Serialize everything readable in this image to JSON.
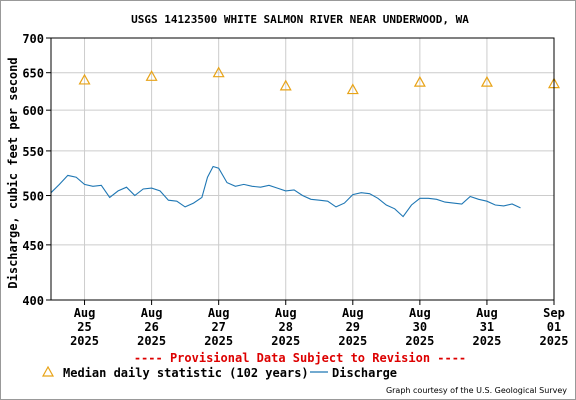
{
  "chart_data": {
    "type": "line",
    "title": "USGS 14123500 WHITE SALMON RIVER NEAR UNDERWOOD, WA",
    "ylabel": "Discharge, cubic feet per second",
    "y_scale": "log",
    "ylim": [
      400,
      700
    ],
    "y_ticks": [
      "700",
      "650",
      "600",
      "550",
      "500",
      "450",
      "400"
    ],
    "y_tick_values": [
      700,
      650,
      600,
      550,
      500,
      450,
      400
    ],
    "x_range": [
      "2025-08-25 00:00",
      "2025-09-01 12:00"
    ],
    "x_ticks": [
      {
        "month": "Aug",
        "day": "25",
        "year": "2025"
      },
      {
        "month": "Aug",
        "day": "26",
        "year": "2025"
      },
      {
        "month": "Aug",
        "day": "27",
        "year": "2025"
      },
      {
        "month": "Aug",
        "day": "28",
        "year": "2025"
      },
      {
        "month": "Aug",
        "day": "29",
        "year": "2025"
      },
      {
        "month": "Aug",
        "day": "30",
        "year": "2025"
      },
      {
        "month": "Aug",
        "day": "31",
        "year": "2025"
      },
      {
        "month": "Sep",
        "day": "01",
        "year": "2025"
      }
    ],
    "grid": true,
    "series": [
      {
        "name": "Median daily statistic (102 years)",
        "kind": "marker",
        "marker": "triangle",
        "color": "#E8A317",
        "points": [
          {
            "x": "2025-08-25 12:00",
            "y": 640
          },
          {
            "x": "2025-08-26 12:00",
            "y": 645
          },
          {
            "x": "2025-08-27 12:00",
            "y": 650
          },
          {
            "x": "2025-08-28 12:00",
            "y": 632
          },
          {
            "x": "2025-08-29 12:00",
            "y": 627
          },
          {
            "x": "2025-08-30 12:00",
            "y": 637
          },
          {
            "x": "2025-08-31 12:00",
            "y": 637
          },
          {
            "x": "2025-09-01 12:00",
            "y": 635
          }
        ]
      },
      {
        "name": "Discharge",
        "kind": "line",
        "color": "#1F77B4",
        "points": [
          {
            "x": "2025-08-25 00:00",
            "y": 503
          },
          {
            "x": "2025-08-25 03:00",
            "y": 512
          },
          {
            "x": "2025-08-25 06:00",
            "y": 522
          },
          {
            "x": "2025-08-25 09:00",
            "y": 520
          },
          {
            "x": "2025-08-25 12:00",
            "y": 512
          },
          {
            "x": "2025-08-25 15:00",
            "y": 510
          },
          {
            "x": "2025-08-25 18:00",
            "y": 511
          },
          {
            "x": "2025-08-25 21:00",
            "y": 498
          },
          {
            "x": "2025-08-26 00:00",
            "y": 505
          },
          {
            "x": "2025-08-26 03:00",
            "y": 509
          },
          {
            "x": "2025-08-26 06:00",
            "y": 500
          },
          {
            "x": "2025-08-26 09:00",
            "y": 507
          },
          {
            "x": "2025-08-26 12:00",
            "y": 508
          },
          {
            "x": "2025-08-26 15:00",
            "y": 505
          },
          {
            "x": "2025-08-26 18:00",
            "y": 495
          },
          {
            "x": "2025-08-26 21:00",
            "y": 494
          },
          {
            "x": "2025-08-27 00:00",
            "y": 488
          },
          {
            "x": "2025-08-27 03:00",
            "y": 492
          },
          {
            "x": "2025-08-27 06:00",
            "y": 498
          },
          {
            "x": "2025-08-27 08:00",
            "y": 520
          },
          {
            "x": "2025-08-27 10:00",
            "y": 532
          },
          {
            "x": "2025-08-27 12:00",
            "y": 530
          },
          {
            "x": "2025-08-27 15:00",
            "y": 514
          },
          {
            "x": "2025-08-27 18:00",
            "y": 510
          },
          {
            "x": "2025-08-27 21:00",
            "y": 512
          },
          {
            "x": "2025-08-28 00:00",
            "y": 510
          },
          {
            "x": "2025-08-28 03:00",
            "y": 509
          },
          {
            "x": "2025-08-28 06:00",
            "y": 511
          },
          {
            "x": "2025-08-28 09:00",
            "y": 508
          },
          {
            "x": "2025-08-28 12:00",
            "y": 505
          },
          {
            "x": "2025-08-28 15:00",
            "y": 506
          },
          {
            "x": "2025-08-28 18:00",
            "y": 500
          },
          {
            "x": "2025-08-28 21:00",
            "y": 496
          },
          {
            "x": "2025-08-29 00:00",
            "y": 495
          },
          {
            "x": "2025-08-29 03:00",
            "y": 494
          },
          {
            "x": "2025-08-29 06:00",
            "y": 488
          },
          {
            "x": "2025-08-29 09:00",
            "y": 492
          },
          {
            "x": "2025-08-29 12:00",
            "y": 501
          },
          {
            "x": "2025-08-29 15:00",
            "y": 503
          },
          {
            "x": "2025-08-29 18:00",
            "y": 502
          },
          {
            "x": "2025-08-29 21:00",
            "y": 497
          },
          {
            "x": "2025-08-30 00:00",
            "y": 490
          },
          {
            "x": "2025-08-30 03:00",
            "y": 486
          },
          {
            "x": "2025-08-30 06:00",
            "y": 478
          },
          {
            "x": "2025-08-30 09:00",
            "y": 490
          },
          {
            "x": "2025-08-30 12:00",
            "y": 497
          },
          {
            "x": "2025-08-30 15:00",
            "y": 497
          },
          {
            "x": "2025-08-30 18:00",
            "y": 496
          },
          {
            "x": "2025-08-30 21:00",
            "y": 493
          },
          {
            "x": "2025-08-31 00:00",
            "y": 492
          },
          {
            "x": "2025-08-31 03:00",
            "y": 491
          },
          {
            "x": "2025-08-31 06:00",
            "y": 499
          },
          {
            "x": "2025-08-31 09:00",
            "y": 496
          },
          {
            "x": "2025-08-31 12:00",
            "y": 494
          },
          {
            "x": "2025-08-31 15:00",
            "y": 490
          },
          {
            "x": "2025-08-31 18:00",
            "y": 489
          },
          {
            "x": "2025-08-31 21:00",
            "y": 491
          },
          {
            "x": "2025-09-01 00:00",
            "y": 487
          }
        ]
      }
    ],
    "colors": {
      "grid": "#CCCCCC",
      "axis": "#000000",
      "discharge": "#1F77B4",
      "median": "#E8A317",
      "provisional": "#DD0000"
    }
  },
  "notices": {
    "provisional": "---- Provisional Data Subject to Revision ----",
    "courtesy": "Graph courtesy of the U.S. Geological Survey"
  },
  "legend": {
    "median_label": "Median daily statistic (102 years)",
    "discharge_label": "Discharge"
  }
}
